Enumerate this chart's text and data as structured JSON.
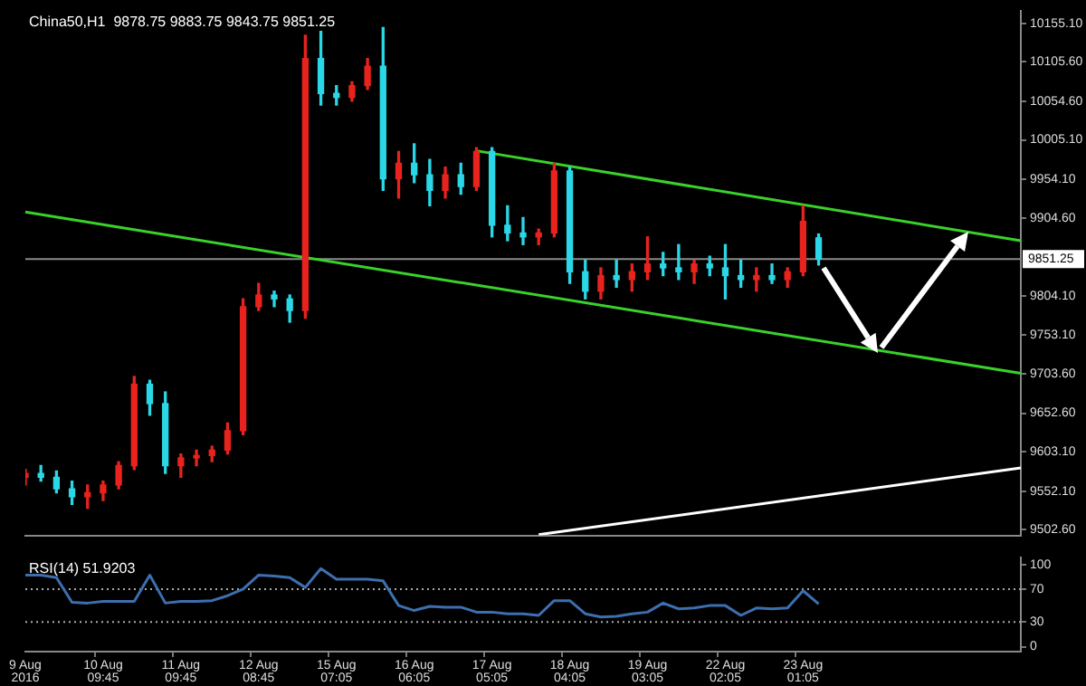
{
  "chart_data": [
    {
      "type": "candlestick",
      "title": "China50,H1  9878.75 9883.75 9843.75 9851.25",
      "categories": [
        null,
        null,
        null,
        null,
        null,
        null,
        null,
        null,
        null,
        null,
        null,
        null,
        null,
        null,
        null,
        null,
        null,
        null,
        null,
        null,
        null,
        null,
        null,
        null,
        null,
        null,
        null,
        null,
        null,
        null,
        null,
        null,
        null,
        null,
        null,
        null,
        null,
        null,
        null,
        null,
        null,
        null,
        null,
        null,
        null,
        null,
        null,
        null,
        null,
        null,
        null,
        null,
        null,
        null,
        null,
        null,
        null,
        null,
        null,
        null,
        null,
        null,
        null,
        null,
        null
      ],
      "ohlc": [
        [
          9570,
          9580,
          9560,
          9575
        ],
        [
          9575,
          9585,
          9565,
          9570
        ],
        [
          9570,
          9578,
          9550,
          9555
        ],
        [
          9555,
          9565,
          9535,
          9545
        ],
        [
          9545,
          9560,
          9530,
          9550
        ],
        [
          9550,
          9565,
          9540,
          9560
        ],
        [
          9560,
          9590,
          9555,
          9585
        ],
        [
          9585,
          9700,
          9580,
          9690
        ],
        [
          9690,
          9695,
          9650,
          9665
        ],
        [
          9665,
          9680,
          9575,
          9585
        ],
        [
          9585,
          9600,
          9570,
          9595
        ],
        [
          9595,
          9605,
          9585,
          9598
        ],
        [
          9598,
          9610,
          9590,
          9605
        ],
        [
          9605,
          9640,
          9600,
          9630
        ],
        [
          9630,
          9800,
          9625,
          9790
        ],
        [
          9790,
          9820,
          9785,
          9805
        ],
        [
          9805,
          9810,
          9790,
          9800
        ],
        [
          9800,
          9805,
          9770,
          9785
        ],
        [
          9785,
          10140,
          9775,
          10110
        ],
        [
          10110,
          10145,
          10050,
          10065
        ],
        [
          10065,
          10075,
          10050,
          10060
        ],
        [
          10060,
          10080,
          10055,
          10075
        ],
        [
          10075,
          10110,
          10070,
          10100
        ],
        [
          10100,
          10150,
          9940,
          9955
        ],
        [
          9955,
          9990,
          9930,
          9975
        ],
        [
          9975,
          10000,
          9950,
          9960
        ],
        [
          9960,
          9980,
          9920,
          9940
        ],
        [
          9940,
          9970,
          9930,
          9960
        ],
        [
          9960,
          9975,
          9935,
          9945
        ],
        [
          9945,
          9995,
          9940,
          9990
        ],
        [
          9990,
          9995,
          9880,
          9895
        ],
        [
          9895,
          9920,
          9875,
          9885
        ],
        [
          9885,
          9905,
          9870,
          9880
        ],
        [
          9880,
          9890,
          9870,
          9885
        ],
        [
          9885,
          9975,
          9880,
          9965
        ],
        [
          9965,
          9970,
          9820,
          9835
        ],
        [
          9835,
          9850,
          9800,
          9810
        ],
        [
          9810,
          9840,
          9800,
          9830
        ],
        [
          9830,
          9850,
          9815,
          9825
        ],
        [
          9825,
          9845,
          9810,
          9835
        ],
        [
          9835,
          9880,
          9825,
          9845
        ],
        [
          9845,
          9860,
          9830,
          9840
        ],
        [
          9840,
          9870,
          9825,
          9835
        ],
        [
          9835,
          9850,
          9820,
          9845
        ],
        [
          9845,
          9855,
          9830,
          9840
        ],
        [
          9840,
          9870,
          9800,
          9830
        ],
        [
          9830,
          9850,
          9815,
          9825
        ],
        [
          9825,
          9840,
          9810,
          9830
        ],
        [
          9830,
          9845,
          9820,
          9825
        ],
        [
          9825,
          9840,
          9815,
          9835
        ],
        [
          9835,
          9920,
          9830,
          9900
        ],
        [
          9878.75,
          9883.75,
          9843.75,
          9851.25
        ],
        null,
        null,
        null,
        null,
        null,
        null,
        null,
        null,
        null,
        null,
        null,
        null,
        null
      ],
      "colors": [
        "#e8231e",
        "#2ad7e6",
        "#2ad7e6",
        "#2ad7e6",
        "#e8231e",
        "#e8231e",
        "#e8231e",
        "#e8231e",
        "#2ad7e6",
        "#2ad7e6",
        "#e8231e",
        "#e8231e",
        "#e8231e",
        "#e8231e",
        "#e8231e",
        "#e8231e",
        "#2ad7e6",
        "#2ad7e6",
        "#e8231e",
        "#2ad7e6",
        "#2ad7e6",
        "#e8231e",
        "#e8231e",
        "#2ad7e6",
        "#e8231e",
        "#2ad7e6",
        "#2ad7e6",
        "#e8231e",
        "#2ad7e6",
        "#e8231e",
        "#2ad7e6",
        "#2ad7e6",
        "#2ad7e6",
        "#e8231e",
        "#e8231e",
        "#2ad7e6",
        "#2ad7e6",
        "#e8231e",
        "#2ad7e6",
        "#e8231e",
        "#e8231e",
        "#2ad7e6",
        "#2ad7e6",
        "#e8231e",
        "#2ad7e6",
        "#2ad7e6",
        "#2ad7e6",
        "#e8231e",
        "#2ad7e6",
        "#e8231e",
        "#e8231e",
        "#2ad7e6",
        null,
        null,
        null,
        null,
        null,
        null,
        null,
        null,
        null,
        null,
        null,
        null,
        null
      ],
      "series": [
        {
          "type": "line",
          "color": "#3ad12b",
          "values": [
            9912,
            null,
            null,
            null,
            null,
            null,
            null,
            null,
            null,
            null,
            null,
            null,
            null,
            null,
            null,
            null,
            null,
            null,
            null,
            null,
            null,
            null,
            null,
            null,
            null,
            null,
            null,
            null,
            null,
            null,
            null,
            null,
            null,
            null,
            null,
            null,
            null,
            null,
            null,
            null,
            null,
            null,
            null,
            null,
            null,
            null,
            null,
            null,
            null,
            null,
            null,
            null,
            null,
            null,
            null,
            null,
            null,
            null,
            null,
            null,
            null,
            null,
            null,
            null,
            9704
          ]
        },
        {
          "type": "line",
          "color": "#3ad12b",
          "values": [
            null,
            null,
            null,
            null,
            null,
            null,
            null,
            null,
            null,
            null,
            null,
            null,
            null,
            null,
            null,
            null,
            null,
            null,
            null,
            null,
            null,
            null,
            null,
            null,
            null,
            null,
            null,
            null,
            null,
            9991,
            null,
            null,
            null,
            null,
            null,
            null,
            null,
            null,
            null,
            null,
            null,
            null,
            null,
            null,
            null,
            null,
            null,
            null,
            null,
            null,
            null,
            null,
            null,
            null,
            null,
            null,
            null,
            null,
            null,
            null,
            null,
            null,
            null,
            null,
            9875
          ]
        },
        {
          "type": "line",
          "color": "#ffffff",
          "values": [
            null,
            null,
            null,
            null,
            null,
            null,
            null,
            null,
            null,
            null,
            null,
            null,
            null,
            null,
            null,
            null,
            null,
            null,
            null,
            null,
            null,
            null,
            null,
            null,
            null,
            null,
            null,
            null,
            null,
            null,
            null,
            null,
            null,
            9496,
            null,
            null,
            null,
            null,
            null,
            null,
            null,
            null,
            null,
            null,
            null,
            null,
            null,
            null,
            null,
            null,
            null,
            null,
            null,
            null,
            null,
            null,
            null,
            null,
            null,
            null,
            null,
            null,
            null,
            null,
            9582
          ]
        }
      ],
      "ylim": [
        9495,
        10171
      ],
      "yticks": [
        {
          "value": 9502.6,
          "label": "9502.60"
        },
        {
          "value": 9552.1,
          "label": "9552.10"
        },
        {
          "value": 9603.1,
          "label": "9603.10"
        },
        {
          "value": 9652.6,
          "label": "9652.60"
        },
        {
          "value": 9703.6,
          "label": "9703.60"
        },
        {
          "value": 9753.1,
          "label": "9753.10"
        },
        {
          "value": 9804.1,
          "label": "9804.10"
        },
        {
          "value": 9904.6,
          "label": "9904.60"
        },
        {
          "value": 9954.1,
          "label": "9954.10"
        },
        {
          "value": 10005.1,
          "label": "10005.10"
        },
        {
          "value": 10054.6,
          "label": "10054.60"
        },
        {
          "value": 10105.6,
          "label": "10105.60"
        },
        {
          "value": 10155.1,
          "label": "10155.10"
        }
      ],
      "ref_lines": [
        {
          "axis": "y",
          "value": 9851.25,
          "label": "9851.25",
          "color": "#8a8a8a"
        }
      ],
      "marker": "none",
      "tick_labels": "y"
    },
    {
      "type": "line",
      "title": "RSI(14) 51.9203",
      "categories": [
        "9 Aug 2016",
        null,
        null,
        null,
        null,
        "10 Aug 09:45",
        null,
        null,
        null,
        null,
        "11 Aug 09:45",
        null,
        null,
        null,
        null,
        "12 Aug 08:45",
        null,
        null,
        null,
        null,
        "15 Aug 07:05",
        null,
        null,
        null,
        null,
        "16 Aug 06:05",
        null,
        null,
        null,
        null,
        "17 Aug 05:05",
        null,
        null,
        null,
        null,
        "18 Aug 04:05",
        null,
        null,
        null,
        null,
        "19 Aug 03:05",
        null,
        null,
        null,
        null,
        "22 Aug 02:05",
        null,
        null,
        null,
        null,
        "23 Aug 01:05",
        null,
        null,
        null,
        null,
        null,
        null,
        null,
        null,
        null,
        null,
        null,
        null,
        null,
        null
      ],
      "series": [
        {
          "color": "#3d6fb0",
          "values": [
            87,
            87,
            84,
            54,
            53,
            55,
            55,
            55,
            87,
            53,
            55,
            55,
            56,
            62,
            70,
            87,
            86,
            84,
            72,
            95,
            82,
            82,
            82,
            80,
            50,
            44,
            49,
            48,
            48,
            42,
            42,
            40,
            40,
            38,
            56,
            56,
            40,
            36,
            37,
            40,
            42,
            53,
            46,
            47,
            50,
            50,
            38,
            47,
            46,
            47,
            68,
            52,
            null,
            null,
            null,
            null,
            null,
            null,
            null,
            null,
            null,
            null,
            null,
            null,
            null
          ]
        }
      ],
      "ylim": [
        -6,
        108
      ],
      "yticks": [
        0,
        30,
        70,
        100
      ],
      "ref_lines": [
        {
          "axis": "y",
          "value": 70,
          "color": "#aaaaaa",
          "line_style": "dotted"
        },
        {
          "axis": "y",
          "value": 30,
          "color": "#aaaaaa",
          "line_style": "dotted"
        }
      ],
      "marker": "none"
    }
  ]
}
